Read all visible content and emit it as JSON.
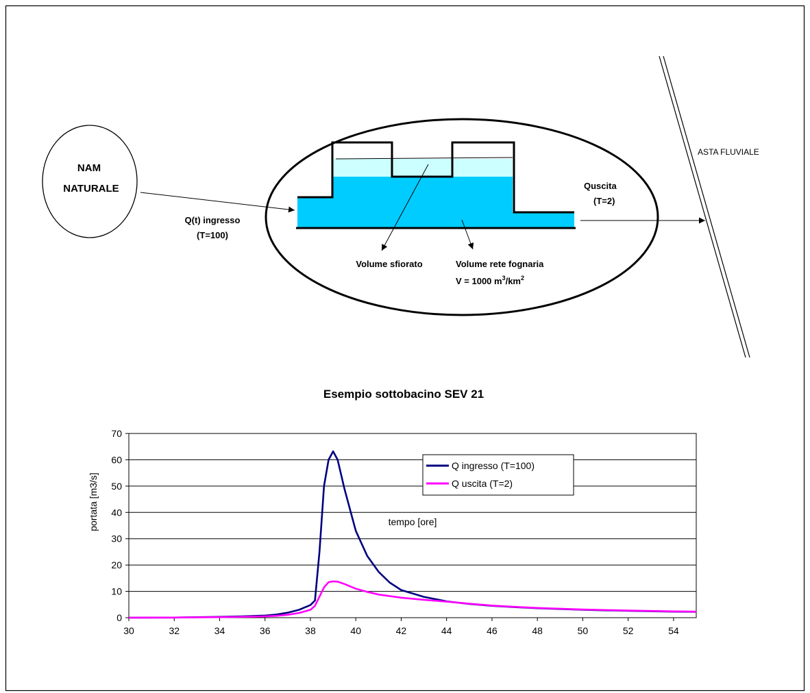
{
  "diagram": {
    "nam_label_line1": "NAM",
    "nam_label_line2": "NATURALE",
    "inflow_label_line1": "Q(t) ingresso",
    "inflow_label_line2": "(T=100)",
    "outflow_label_line1": "Quscita",
    "outflow_label_line2": "(T=2)",
    "river_label": "ASTA FLUVIALE",
    "overflow_volume_label": "Volume sfiorato",
    "sewer_volume_label": "Volume rete fognaria",
    "sewer_volume_formula": "V = 1000 m",
    "sewer_volume_exp1": "3",
    "sewer_volume_unit": "/km",
    "sewer_volume_exp2": "2",
    "colors": {
      "water_dark": "#00ccff",
      "water_light": "#ccffff"
    }
  },
  "chart_data": {
    "type": "line",
    "title": "Esempio sottobacino SEV 21",
    "xlabel": "tempo [ore]",
    "ylabel": "portata [m3/s]",
    "xlim": [
      30,
      55
    ],
    "ylim": [
      0,
      70
    ],
    "xticks": [
      30,
      32,
      34,
      36,
      38,
      40,
      42,
      44,
      46,
      48,
      50,
      52,
      54
    ],
    "yticks": [
      0,
      10,
      20,
      30,
      40,
      50,
      60,
      70
    ],
    "grid": "horizontal",
    "legend_position": "top-right",
    "series": [
      {
        "name": "Q ingresso (T=100)",
        "color": "#000080",
        "x": [
          30,
          32,
          34,
          35,
          36,
          36.5,
          37,
          37.5,
          38,
          38.2,
          38.4,
          38.6,
          38.8,
          39,
          39.2,
          39.5,
          40,
          40.5,
          41,
          41.5,
          42,
          43,
          44,
          45,
          46,
          47,
          48,
          50,
          52,
          54,
          55
        ],
        "y": [
          0,
          0.05,
          0.3,
          0.5,
          0.8,
          1.2,
          1.9,
          3.0,
          4.8,
          6.5,
          25,
          50,
          60,
          63.2,
          60,
          49,
          33,
          23.5,
          17.5,
          13.3,
          10.5,
          7.9,
          6.2,
          5.2,
          4.5,
          4.0,
          3.6,
          3.0,
          2.6,
          2.3,
          2.2
        ]
      },
      {
        "name": "Q uscita (T=2)",
        "color": "#ff00ff",
        "x": [
          30,
          32,
          34,
          35,
          36,
          36.5,
          37,
          37.5,
          38,
          38.2,
          38.4,
          38.6,
          38.8,
          39,
          39.2,
          39.5,
          40,
          40.5,
          41,
          42,
          43,
          44,
          45,
          46,
          47,
          48,
          50,
          52,
          54,
          55
        ],
        "y": [
          0,
          0.05,
          0.2,
          0.3,
          0.5,
          0.7,
          1.1,
          1.8,
          3.0,
          4.5,
          8,
          11.5,
          13.5,
          13.8,
          13.7,
          12.8,
          11,
          9.8,
          8.8,
          7.6,
          6.8,
          6.1,
          5.3,
          4.6,
          4.1,
          3.7,
          3.1,
          2.7,
          2.4,
          2.3
        ]
      }
    ]
  }
}
